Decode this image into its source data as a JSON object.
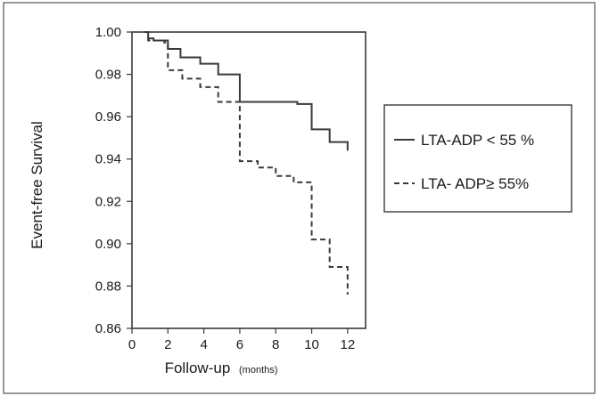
{
  "chart_data": {
    "type": "line",
    "title": "",
    "xlabel": "Follow-up",
    "xlabel_unit": "(months)",
    "ylabel": "Event-free Survival",
    "xlim": [
      0,
      13
    ],
    "ylim": [
      0.86,
      1.0
    ],
    "x_ticks": [
      0,
      2,
      4,
      6,
      8,
      10,
      12
    ],
    "y_ticks": [
      0.86,
      0.88,
      0.9,
      0.92,
      0.94,
      0.96,
      0.98,
      1.0
    ],
    "x_tick_labels": [
      "0",
      "2",
      "4",
      "6",
      "8",
      "10",
      "12"
    ],
    "y_tick_labels": [
      "0.86",
      "0.88",
      "0.90",
      "0.92",
      "0.94",
      "0.96",
      "0.98",
      "1.00"
    ],
    "grid": false,
    "legend_position": "right",
    "step": true,
    "series": [
      {
        "name": "LTA-ADP < 55 %",
        "line_style": "solid",
        "color": "#3a3a3a",
        "x": [
          0.7,
          0.9,
          1.2,
          2.0,
          2.7,
          3.8,
          4.8,
          6.0,
          9.2,
          10.0,
          11.0,
          12.0
        ],
        "y": [
          1.0,
          0.997,
          0.996,
          0.992,
          0.988,
          0.985,
          0.98,
          0.967,
          0.966,
          0.954,
          0.948,
          0.944
        ]
      },
      {
        "name": "LTA- ADP≥ 55%",
        "line_style": "dashed",
        "color": "#3a3a3a",
        "x": [
          0.7,
          0.9,
          1.8,
          2.0,
          2.8,
          3.8,
          4.8,
          6.0,
          7.0,
          8.0,
          9.0,
          10.0,
          11.0,
          12.0
        ],
        "y": [
          1.0,
          0.996,
          0.995,
          0.982,
          0.978,
          0.974,
          0.967,
          0.939,
          0.936,
          0.932,
          0.929,
          0.902,
          0.889,
          0.876
        ]
      }
    ]
  }
}
